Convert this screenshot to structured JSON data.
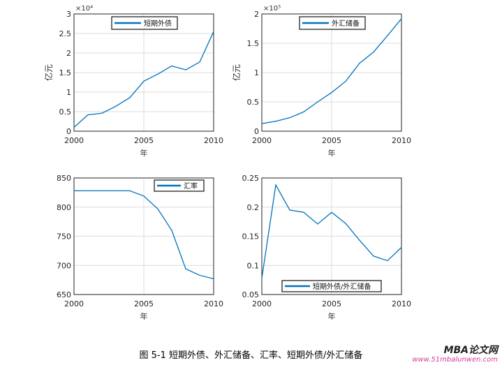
{
  "chart_data": [
    {
      "type": "line",
      "x": [
        2000,
        2001,
        2002,
        2003,
        2004,
        2005,
        2006,
        2007,
        2008,
        2009,
        2010
      ],
      "series": [
        {
          "name": "短期外债",
          "values": [
            1000,
            4200,
            4600,
            6400,
            8600,
            12800,
            14600,
            16700,
            15700,
            17700,
            25500
          ]
        }
      ],
      "xlabel": "年",
      "ylabel": "亿元",
      "xlim": [
        2000,
        2010
      ],
      "ylim": [
        0,
        30000
      ],
      "xticks": [
        "2000",
        "2005",
        "2010"
      ],
      "yticks": [
        "0",
        "0.5",
        "1",
        "1.5",
        "2",
        "2.5",
        "3"
      ],
      "yscale_label": "×10⁴",
      "yscale": 10000,
      "grid": true,
      "legend": "top"
    },
    {
      "type": "line",
      "x": [
        2000,
        2001,
        2002,
        2003,
        2004,
        2005,
        2006,
        2007,
        2008,
        2009,
        2010
      ],
      "series": [
        {
          "name": "外汇储备",
          "values": [
            13000,
            17000,
            23000,
            33000,
            50000,
            66000,
            85000,
            116000,
            135000,
            163000,
            192000
          ]
        }
      ],
      "xlabel": "年",
      "ylabel": "亿元",
      "xlim": [
        2000,
        2010
      ],
      "ylim": [
        0,
        200000
      ],
      "xticks": [
        "2000",
        "2005",
        "2010"
      ],
      "yticks": [
        "0",
        "0.5",
        "1",
        "1.5",
        "2"
      ],
      "yscale_label": "×10⁵",
      "yscale": 100000,
      "grid": true,
      "legend": "top"
    },
    {
      "type": "line",
      "x": [
        2000,
        2001,
        2002,
        2003,
        2004,
        2005,
        2006,
        2007,
        2008,
        2009,
        2010
      ],
      "series": [
        {
          "name": "汇率",
          "values": [
            828,
            828,
            828,
            828,
            828,
            819,
            797,
            760,
            694,
            683,
            677
          ]
        }
      ],
      "xlabel": "年",
      "ylabel": "",
      "xlim": [
        2000,
        2010
      ],
      "ylim": [
        650,
        850
      ],
      "xticks": [
        "2000",
        "2005",
        "2010"
      ],
      "yticks": [
        "650",
        "700",
        "750",
        "800",
        "850"
      ],
      "grid": true,
      "legend": "top-right"
    },
    {
      "type": "line",
      "x": [
        2000,
        2001,
        2002,
        2003,
        2004,
        2005,
        2006,
        2007,
        2008,
        2009,
        2010
      ],
      "series": [
        {
          "name": "短期外债/外汇储备",
          "values": [
            0.078,
            0.238,
            0.195,
            0.191,
            0.171,
            0.191,
            0.172,
            0.143,
            0.116,
            0.108,
            0.131
          ]
        }
      ],
      "xlabel": "年",
      "ylabel": "",
      "xlim": [
        2000,
        2010
      ],
      "ylim": [
        0.05,
        0.25
      ],
      "xticks": [
        "2000",
        "2005",
        "2010"
      ],
      "yticks": [
        "0.05",
        "0.1",
        "0.15",
        "0.2",
        "0.25"
      ],
      "grid": true,
      "legend": "bottom"
    }
  ],
  "caption": "图 5-1  短期外债、外汇储备、汇率、短期外债/外汇储备",
  "watermark": {
    "title": "MBA论文网",
    "url": "www.51mbalunwen.com"
  },
  "colors": {
    "line": "#0072bd",
    "grid": "#dcdcdc"
  }
}
